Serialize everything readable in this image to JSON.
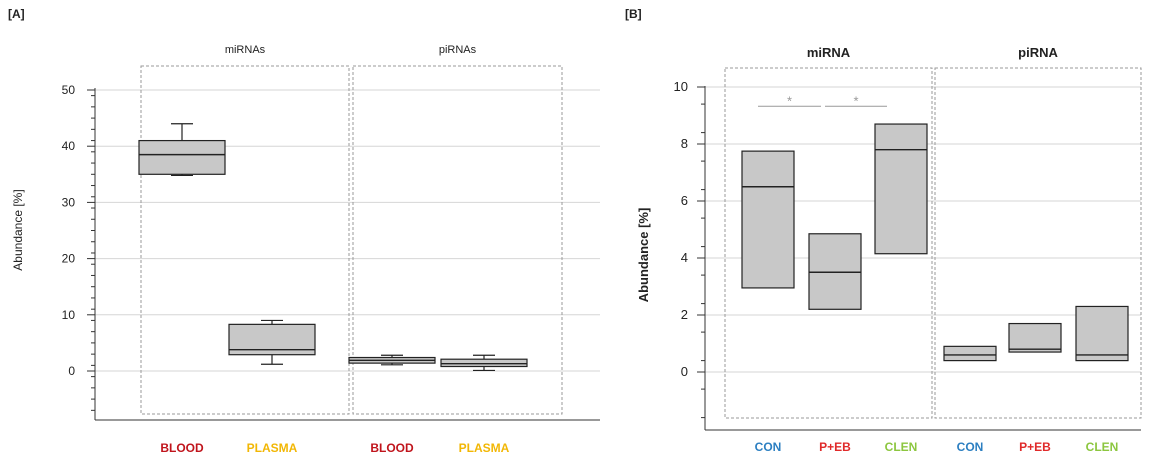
{
  "colors": {
    "blood": "#c0141c",
    "plasma": "#f2b705",
    "con": "#2c7fc1",
    "peb": "#e02a2a",
    "clen": "#8cc63f",
    "box_fill": "#c8c8c8",
    "gridline": "#d6d6d6",
    "frame": "#9a9a9a",
    "significance": "#999999"
  },
  "chart_data": [
    {
      "panel": "[A]",
      "type": "box",
      "ylabel": "Abundance [%]",
      "ylim": [
        -9,
        50
      ],
      "yticks": [
        0,
        10,
        20,
        30,
        40,
        50
      ],
      "grid": true,
      "groups": [
        {
          "label": "miRNAs",
          "categories": [
            0,
            1
          ]
        },
        {
          "label": "piRNAs",
          "categories": [
            2,
            3
          ]
        }
      ],
      "categories": [
        {
          "label": "BLOOD",
          "color": "blood"
        },
        {
          "label": "PLASMA",
          "color": "plasma"
        },
        {
          "label": "BLOOD",
          "color": "blood"
        },
        {
          "label": "PLASMA",
          "color": "plasma"
        }
      ],
      "boxes": [
        {
          "min": 34.8,
          "q1": 35.0,
          "median": 38.5,
          "q3": 41.0,
          "max": 44.0
        },
        {
          "min": 1.2,
          "q1": 2.9,
          "median": 3.8,
          "q3": 8.3,
          "max": 9.0
        },
        {
          "min": 1.1,
          "q1": 1.4,
          "median": 1.9,
          "q3": 2.4,
          "max": 2.8
        },
        {
          "min": 0.1,
          "q1": 0.8,
          "median": 1.3,
          "q3": 2.1,
          "max": 2.8
        }
      ]
    },
    {
      "panel": "[B]",
      "type": "box",
      "ylabel": "Abundance [%]",
      "ylim": [
        -1.6,
        10
      ],
      "yticks": [
        0,
        2,
        4,
        6,
        8,
        10
      ],
      "grid": true,
      "groups": [
        {
          "label": "miRNA",
          "categories": [
            0,
            1,
            2
          ]
        },
        {
          "label": "piRNA",
          "categories": [
            3,
            4,
            5
          ]
        }
      ],
      "categories": [
        {
          "label": "CON",
          "color": "con"
        },
        {
          "label": "P+EB",
          "color": "peb"
        },
        {
          "label": "CLEN",
          "color": "clen"
        },
        {
          "label": "CON",
          "color": "con"
        },
        {
          "label": "P+EB",
          "color": "peb"
        },
        {
          "label": "CLEN",
          "color": "clen"
        }
      ],
      "boxes": [
        {
          "q1": 2.95,
          "median": 6.5,
          "q3": 7.75
        },
        {
          "q1": 2.2,
          "median": 3.5,
          "q3": 4.85
        },
        {
          "q1": 4.15,
          "median": 7.8,
          "q3": 8.7
        },
        {
          "q1": 0.4,
          "median": 0.6,
          "q3": 0.9
        },
        {
          "q1": 0.7,
          "median": 0.8,
          "q3": 1.7
        },
        {
          "q1": 0.4,
          "median": 0.6,
          "q3": 2.3
        }
      ],
      "significance": [
        {
          "from": 0,
          "to": 1,
          "y": 9.5,
          "label": "*"
        },
        {
          "from": 1,
          "to": 2,
          "y": 9.5,
          "label": "*"
        }
      ]
    }
  ]
}
